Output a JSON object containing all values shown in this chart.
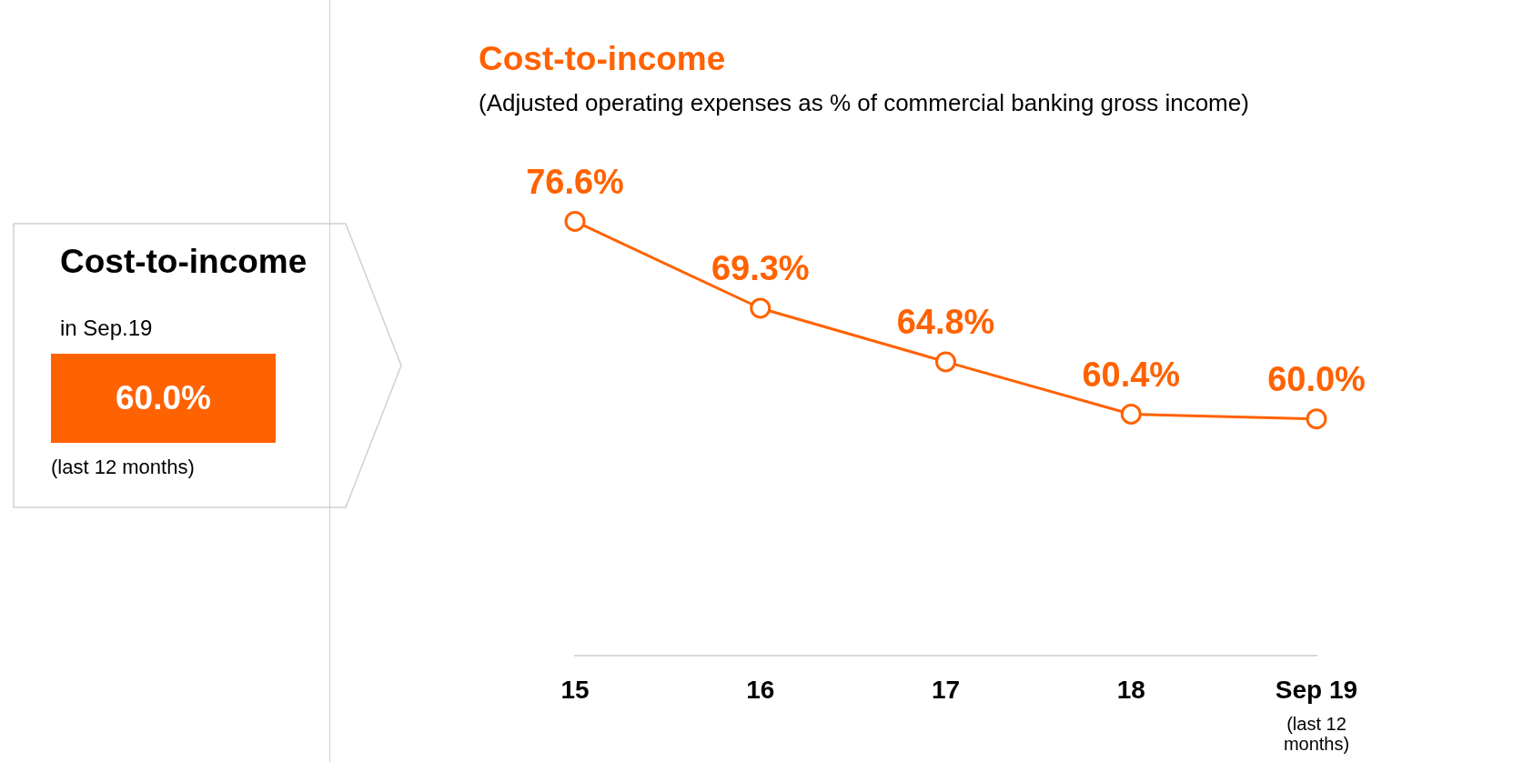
{
  "chart_data": [
    {
      "type": "other",
      "title": "Cost-to-income",
      "subtitle": "in Sep.19",
      "annotations": [
        "60.0%",
        "(last 12 months)"
      ],
      "color": "#ff6200"
    },
    {
      "type": "line",
      "title": "Cost-to-income",
      "subtitle": "(Adjusted operating expenses as % of commercial banking gross income)",
      "categories": [
        "15",
        "16",
        "17",
        "18",
        "Sep 19"
      ],
      "series": [
        {
          "color": "#ff6200",
          "values": [
            76.6,
            69.3,
            64.8,
            60.4,
            60.0
          ],
          "value_labels": [
            "76.6%",
            "69.3%",
            "64.8%",
            "60.4%",
            "60.0%"
          ]
        }
      ],
      "tick_labels": "x",
      "grid": false,
      "legend": false,
      "marker": "circle",
      "line_style": "solid",
      "annotations": [
        "(last 12 months)"
      ]
    }
  ]
}
